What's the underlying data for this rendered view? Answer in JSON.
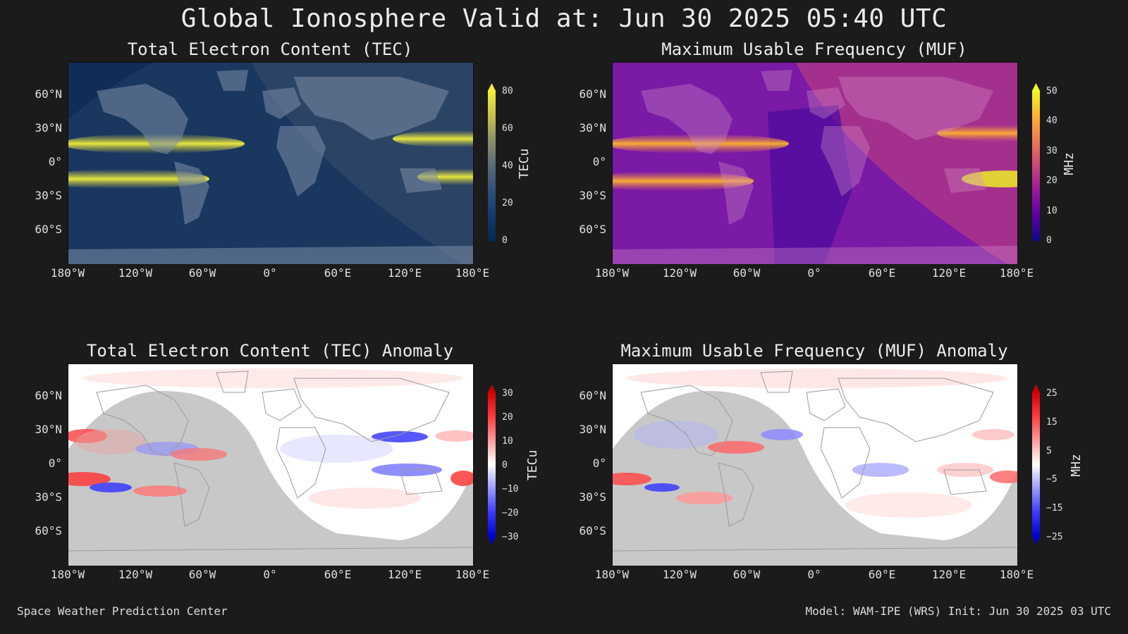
{
  "header": {
    "title": "Global Ionosphere Valid at: Jun 30 2025 05:40 UTC"
  },
  "axes": {
    "lat_labels": [
      "60°N",
      "30°N",
      "0°",
      "30°S",
      "60°S"
    ],
    "lon_labels": [
      "180°W",
      "120°W",
      "60°W",
      "0°",
      "60°E",
      "120°E",
      "180°E"
    ]
  },
  "panels": {
    "tec": {
      "title": "Total Electron Content (TEC)",
      "unit": "TECu",
      "ticks": [
        "80",
        "60",
        "40",
        "20",
        "0"
      ],
      "colormap": [
        "#002b4d",
        "#123a6e",
        "#2f4f7a",
        "#5a6a78",
        "#8c8f6a",
        "#c6c24e",
        "#f2ef3a"
      ]
    },
    "muf": {
      "title": "Maximum Usable Frequency (MUF)",
      "unit": "MHz",
      "ticks": [
        "50",
        "40",
        "30",
        "20",
        "10",
        "0"
      ],
      "colormap": [
        "#0d0887",
        "#5c01a6",
        "#9c179e",
        "#cc4778",
        "#ed7953",
        "#fdb42f",
        "#f0f921"
      ]
    },
    "tec_anomaly": {
      "title": "Total Electron Content (TEC) Anomaly",
      "unit": "TECu",
      "ticks": [
        "30",
        "20",
        "10",
        "0",
        "−10",
        "−20",
        "−30"
      ],
      "colormap": [
        "#0000cc",
        "#3a3aff",
        "#9a9aff",
        "#ffffff",
        "#ff9a9a",
        "#ff3a3a",
        "#cc0000"
      ]
    },
    "muf_anomaly": {
      "title": "Maximum Usable Frequency (MUF) Anomaly",
      "unit": "MHz",
      "ticks": [
        "25",
        "15",
        "5",
        "−5",
        "−15",
        "−25"
      ],
      "colormap": [
        "#0000cc",
        "#3a3aff",
        "#9a9aff",
        "#ffffff",
        "#ff9a9a",
        "#ff3a3a",
        "#cc0000"
      ]
    }
  },
  "footer": {
    "left": "Space Weather Prediction Center",
    "right": "Model: WAM-IPE (WRS) Init: Jun 30 2025 03 UTC"
  }
}
